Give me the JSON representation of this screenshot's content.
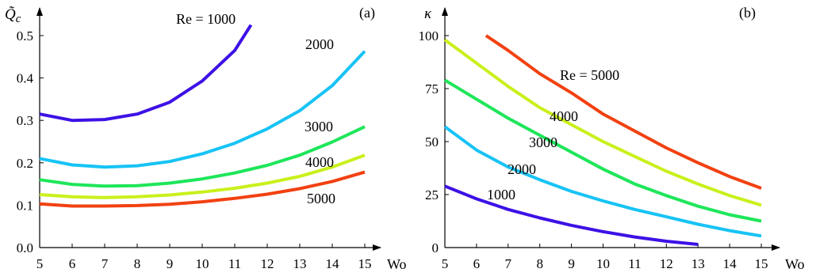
{
  "chart_data": [
    {
      "type": "line",
      "panel_label": "(a)",
      "ylabel": "Q̃",
      "ylabel_sub": "c",
      "xlabel": "Wo",
      "xlim": [
        5,
        15
      ],
      "ylim": [
        0,
        0.5
      ],
      "xticks": [
        5,
        6,
        7,
        8,
        9,
        10,
        11,
        12,
        13,
        14,
        15
      ],
      "yticks": [
        "0.0",
        "0.1",
        "0.2",
        "0.3",
        "0.4",
        "0.5"
      ],
      "grid": false,
      "series": [
        {
          "name": "Re = 1000",
          "color": "#3d11e6",
          "x": [
            5,
            6,
            7,
            8,
            9,
            10,
            11,
            11.5
          ],
          "y": [
            0.315,
            0.3,
            0.302,
            0.315,
            0.343,
            0.393,
            0.465,
            0.525
          ]
        },
        {
          "name": "2000",
          "color": "#17c3f5",
          "x": [
            5,
            6,
            7,
            8,
            9,
            10,
            11,
            12,
            13,
            14,
            15
          ],
          "y": [
            0.21,
            0.195,
            0.19,
            0.193,
            0.203,
            0.221,
            0.246,
            0.28,
            0.323,
            0.382,
            0.463
          ]
        },
        {
          "name": "3000",
          "color": "#1ee65a",
          "x": [
            5,
            6,
            7,
            8,
            9,
            10,
            11,
            12,
            13,
            14,
            15
          ],
          "y": [
            0.16,
            0.149,
            0.145,
            0.146,
            0.152,
            0.162,
            0.176,
            0.194,
            0.218,
            0.249,
            0.285
          ]
        },
        {
          "name": "4000",
          "color": "#c9f01c",
          "x": [
            5,
            6,
            7,
            8,
            9,
            10,
            11,
            12,
            13,
            14,
            15
          ],
          "y": [
            0.125,
            0.12,
            0.118,
            0.12,
            0.124,
            0.131,
            0.14,
            0.152,
            0.168,
            0.19,
            0.218
          ]
        },
        {
          "name": "5000",
          "color": "#f24111",
          "x": [
            5,
            6,
            7,
            8,
            9,
            10,
            11,
            12,
            13,
            14,
            15
          ],
          "y": [
            0.103,
            0.098,
            0.098,
            0.099,
            0.102,
            0.108,
            0.116,
            0.126,
            0.139,
            0.156,
            0.178
          ]
        }
      ]
    },
    {
      "type": "line",
      "panel_label": "(b)",
      "ylabel": "κ",
      "xlabel": "Wo",
      "xlim": [
        5,
        15
      ],
      "ylim": [
        0,
        100
      ],
      "xticks": [
        5,
        6,
        7,
        8,
        9,
        10,
        11,
        12,
        13,
        14,
        15
      ],
      "yticks": [
        "0",
        "25",
        "50",
        "75",
        "100"
      ],
      "grid": false,
      "series": [
        {
          "name": "1000",
          "color": "#3d11e6",
          "x": [
            5,
            6,
            7,
            8,
            9,
            10,
            11,
            12,
            13
          ],
          "y": [
            29,
            23,
            18,
            14,
            10.5,
            7.5,
            5,
            3,
            1.5
          ]
        },
        {
          "name": "2000",
          "color": "#17c3f5",
          "x": [
            5,
            6,
            7,
            8,
            9,
            10,
            11,
            12,
            13,
            14,
            15
          ],
          "y": [
            57,
            46,
            38,
            32,
            26.5,
            22,
            18,
            14.5,
            11,
            8,
            5.5
          ]
        },
        {
          "name": "3000",
          "color": "#1ee65a",
          "x": [
            5,
            6,
            7,
            8,
            9,
            10,
            11,
            12,
            13,
            14,
            15
          ],
          "y": [
            79,
            70,
            61,
            53,
            45,
            37,
            30,
            24.5,
            19.5,
            15.5,
            12.5
          ]
        },
        {
          "name": "4000",
          "color": "#c9f01c",
          "x": [
            5,
            6,
            7,
            8,
            9,
            10,
            11,
            12,
            13,
            14,
            15
          ],
          "y": [
            98,
            87,
            76,
            66,
            58,
            50,
            43,
            36,
            30,
            24.5,
            20
          ]
        },
        {
          "name": "Re = 5000",
          "color": "#f24111",
          "x": [
            6.3,
            7,
            8,
            9,
            10,
            11,
            12,
            13,
            14,
            15
          ],
          "y": [
            100,
            93,
            82,
            73,
            63,
            55,
            47,
            40,
            33.5,
            28
          ]
        }
      ]
    }
  ]
}
